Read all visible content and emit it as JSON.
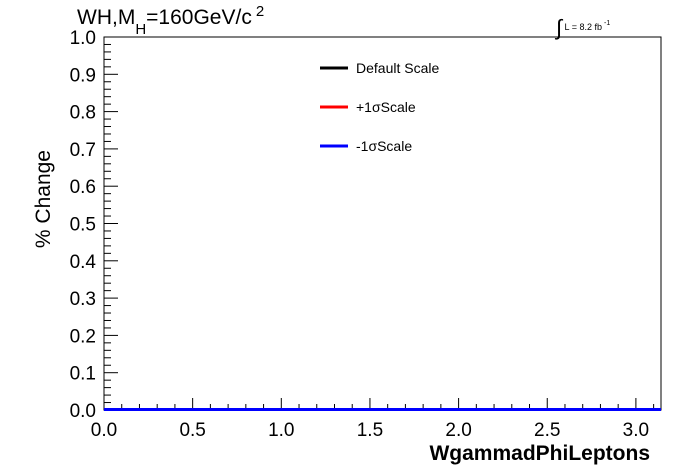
{
  "chart_data": {
    "type": "line",
    "title_main": "WH,M",
    "title_sub": "H",
    "title_rest": "=160GeV/c",
    "title_sup": "2",
    "lumi_label": "L = 8.2 fb",
    "lumi_sup": "-1",
    "xlabel": "WgammadPhiLeptons",
    "ylabel": "% Change",
    "xlim": [
      0,
      3.14159
    ],
    "ylim": [
      0,
      1.0
    ],
    "xticks": [
      "0.0",
      "0.5",
      "1.0",
      "1.5",
      "2.0",
      "2.5",
      "3.0"
    ],
    "xtick_values": [
      0,
      0.5,
      1.0,
      1.5,
      2.0,
      2.5,
      3.0
    ],
    "yticks": [
      "0.0",
      "0.1",
      "0.2",
      "0.3",
      "0.4",
      "0.5",
      "0.6",
      "0.7",
      "0.8",
      "0.9",
      "1.0"
    ],
    "ytick_values": [
      0,
      0.1,
      0.2,
      0.3,
      0.4,
      0.5,
      0.6,
      0.7,
      0.8,
      0.9,
      1.0
    ],
    "legend_position": "top-center",
    "grid": false,
    "series": [
      {
        "name": "Default Scale",
        "color": "#000000",
        "x": [
          0,
          3.14159
        ],
        "y": [
          0,
          0
        ]
      },
      {
        "name": "+1σScale",
        "color": "#ff0000",
        "x": [
          0,
          3.14159
        ],
        "y": [
          0,
          0
        ]
      },
      {
        "name": "-1σScale",
        "color": "#0000ff",
        "x": [
          0,
          3.14159
        ],
        "y": [
          0,
          0
        ]
      }
    ]
  }
}
